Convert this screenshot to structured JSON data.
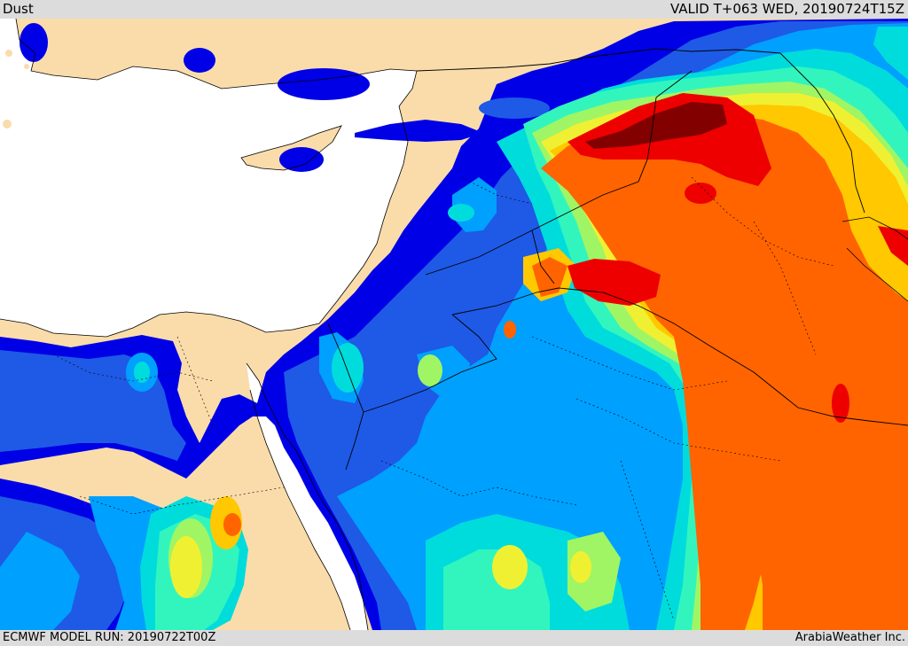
{
  "header": {
    "title": "Dust",
    "valid_time": "VALID T+063 WED, 20190724T15Z"
  },
  "footer": {
    "model_run": "ECMWF MODEL RUN: 20190722T00Z",
    "credit": "ArabiaWeather Inc."
  },
  "colors": {
    "land": "#fadcaa",
    "sea": "#ffffff",
    "level_1": "#0000e6",
    "level_2": "#1e5ae6",
    "level_3": "#00a0ff",
    "level_4": "#00dcdc",
    "level_5": "#32f5be",
    "level_6": "#a0f564",
    "level_7": "#f0f032",
    "level_8": "#ffc800",
    "level_9": "#ff6400",
    "level_10": "#ee0000",
    "level_11": "#820000"
  }
}
